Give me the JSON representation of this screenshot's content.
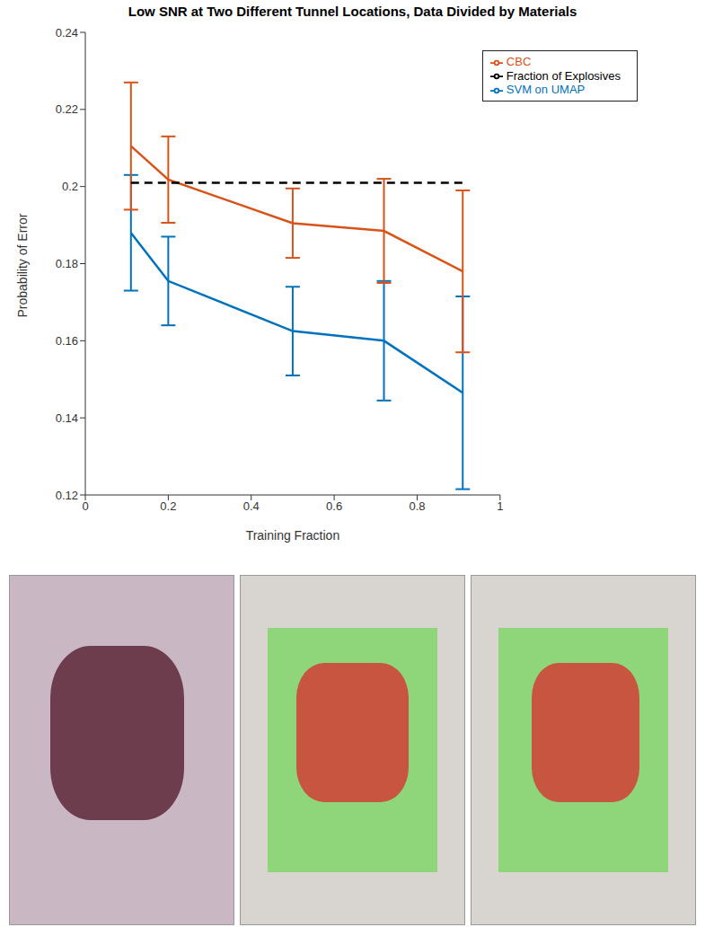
{
  "chart_data": {
    "type": "line",
    "title": "Low SNR at Two Different Tunnel Locations, Data Divided by Materials",
    "x_label": "Training Fraction",
    "y_label": "Probability of Error",
    "x": [
      0.11,
      0.2,
      0.5,
      0.72,
      0.91
    ],
    "series": [
      {
        "name": "SVM on UMAP",
        "color": "#0072BD",
        "values": [
          0.188,
          0.1755,
          0.1625,
          0.16,
          0.1465
        ],
        "errors": [
          0.015,
          0.0115,
          0.0115,
          0.0155,
          0.025
        ],
        "line_style": "solid"
      },
      {
        "name": "CBC",
        "color": "#D95319",
        "values": [
          0.2105,
          0.2018,
          0.1905,
          0.1885,
          0.178
        ],
        "errors": [
          0.0165,
          0.0112,
          0.009,
          0.0135,
          0.021
        ],
        "line_style": "solid"
      },
      {
        "name": "Fraction of Explosives",
        "color": "#000000",
        "values": [
          0.201,
          0.201,
          0.201,
          0.201,
          0.201
        ],
        "line_style": "dashed"
      }
    ],
    "xlim": [
      0,
      1
    ],
    "xticks": [
      0,
      0.2,
      0.4,
      0.6,
      0.8,
      1
    ],
    "ylim": [
      0.12,
      0.24
    ],
    "yticks": [
      0.12,
      0.14,
      0.16,
      0.18,
      0.2,
      0.22,
      0.24
    ],
    "grid": false,
    "legend": "upper right"
  }
}
